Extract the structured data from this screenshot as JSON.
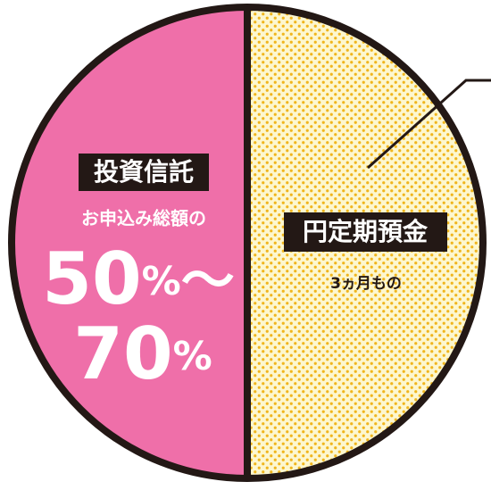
{
  "segments": [
    {
      "label": "投資信託",
      "caption": "お申込み総額の",
      "amount_from": "50",
      "unit": "%",
      "range_sign": "～",
      "amount_to": "70"
    },
    {
      "label": "円定期預金",
      "caption": "3ヵ月もの"
    }
  ]
}
